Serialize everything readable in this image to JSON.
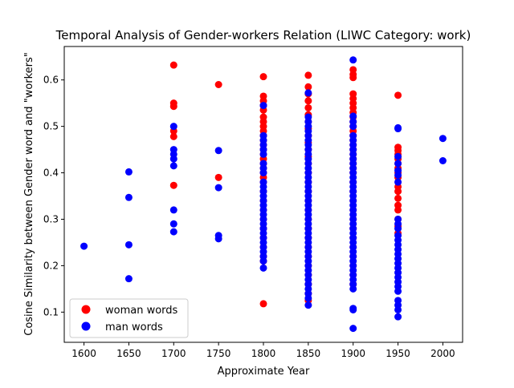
{
  "chart_data": {
    "type": "scatter",
    "title": "Temporal Analysis of Gender-workers Relation (LIWC Category: work)",
    "xlabel": "Approximate Year",
    "ylabel": "Cosine Similarity between Gender word and \"workers\"",
    "xlim": [
      1578,
      2022
    ],
    "ylim": [
      0.035,
      0.672
    ],
    "xticks": [
      "1600",
      "1650",
      "1700",
      "1750",
      "1800",
      "1850",
      "1900",
      "1950",
      "2000"
    ],
    "yticks": [
      "0.1",
      "0.2",
      "0.3",
      "0.4",
      "0.5",
      "0.6"
    ],
    "grid": false,
    "legend_position": "lower-left",
    "series": [
      {
        "name": "woman words",
        "color": "#ff0000",
        "points": [
          [
            1700,
            0.632
          ],
          [
            1700,
            0.55
          ],
          [
            1700,
            0.543
          ],
          [
            1700,
            0.49
          ],
          [
            1700,
            0.478
          ],
          [
            1700,
            0.373
          ],
          [
            1750,
            0.59
          ],
          [
            1750,
            0.39
          ],
          [
            1800,
            0.607
          ],
          [
            1800,
            0.565
          ],
          [
            1800,
            0.555
          ],
          [
            1800,
            0.545
          ],
          [
            1800,
            0.535
          ],
          [
            1800,
            0.52
          ],
          [
            1800,
            0.51
          ],
          [
            1800,
            0.5
          ],
          [
            1800,
            0.49
          ],
          [
            1800,
            0.48
          ],
          [
            1800,
            0.47
          ],
          [
            1800,
            0.46
          ],
          [
            1800,
            0.45
          ],
          [
            1800,
            0.44
          ],
          [
            1800,
            0.43
          ],
          [
            1800,
            0.42
          ],
          [
            1800,
            0.41
          ],
          [
            1800,
            0.4
          ],
          [
            1800,
            0.39
          ],
          [
            1800,
            0.38
          ],
          [
            1800,
            0.36
          ],
          [
            1800,
            0.34
          ],
          [
            1800,
            0.32
          ],
          [
            1800,
            0.3
          ],
          [
            1800,
            0.28
          ],
          [
            1800,
            0.26
          ],
          [
            1800,
            0.24
          ],
          [
            1800,
            0.22
          ],
          [
            1800,
            0.21
          ],
          [
            1800,
            0.118
          ],
          [
            1850,
            0.61
          ],
          [
            1850,
            0.585
          ],
          [
            1850,
            0.57
          ],
          [
            1850,
            0.555
          ],
          [
            1850,
            0.54
          ],
          [
            1850,
            0.525
          ],
          [
            1850,
            0.51
          ],
          [
            1850,
            0.495
          ],
          [
            1850,
            0.48
          ],
          [
            1850,
            0.465
          ],
          [
            1850,
            0.45
          ],
          [
            1850,
            0.435
          ],
          [
            1850,
            0.42
          ],
          [
            1850,
            0.4
          ],
          [
            1850,
            0.38
          ],
          [
            1850,
            0.36
          ],
          [
            1850,
            0.34
          ],
          [
            1850,
            0.32
          ],
          [
            1850,
            0.3
          ],
          [
            1850,
            0.28
          ],
          [
            1850,
            0.26
          ],
          [
            1850,
            0.24
          ],
          [
            1850,
            0.22
          ],
          [
            1850,
            0.2
          ],
          [
            1850,
            0.18
          ],
          [
            1850,
            0.16
          ],
          [
            1850,
            0.14
          ],
          [
            1850,
            0.125
          ],
          [
            1900,
            0.622
          ],
          [
            1900,
            0.612
          ],
          [
            1900,
            0.605
          ],
          [
            1900,
            0.57
          ],
          [
            1900,
            0.56
          ],
          [
            1900,
            0.55
          ],
          [
            1900,
            0.54
          ],
          [
            1900,
            0.53
          ],
          [
            1900,
            0.52
          ],
          [
            1900,
            0.51
          ],
          [
            1900,
            0.5
          ],
          [
            1900,
            0.49
          ],
          [
            1900,
            0.48
          ],
          [
            1900,
            0.47
          ],
          [
            1900,
            0.46
          ],
          [
            1900,
            0.45
          ],
          [
            1900,
            0.44
          ],
          [
            1900,
            0.43
          ],
          [
            1900,
            0.42
          ],
          [
            1900,
            0.41
          ],
          [
            1900,
            0.4
          ],
          [
            1900,
            0.38
          ],
          [
            1900,
            0.36
          ],
          [
            1900,
            0.34
          ],
          [
            1900,
            0.32
          ],
          [
            1900,
            0.3
          ],
          [
            1900,
            0.28
          ],
          [
            1900,
            0.26
          ],
          [
            1900,
            0.24
          ],
          [
            1900,
            0.22
          ],
          [
            1900,
            0.2
          ],
          [
            1900,
            0.18
          ],
          [
            1900,
            0.16
          ],
          [
            1950,
            0.567
          ],
          [
            1950,
            0.455
          ],
          [
            1950,
            0.448
          ],
          [
            1950,
            0.44
          ],
          [
            1950,
            0.43
          ],
          [
            1950,
            0.42
          ],
          [
            1950,
            0.41
          ],
          [
            1950,
            0.4
          ],
          [
            1950,
            0.39
          ],
          [
            1950,
            0.37
          ],
          [
            1950,
            0.36
          ],
          [
            1950,
            0.345
          ],
          [
            1950,
            0.33
          ],
          [
            1950,
            0.32
          ],
          [
            1950,
            0.3
          ],
          [
            1950,
            0.285
          ],
          [
            1950,
            0.27
          ]
        ]
      },
      {
        "name": "man words",
        "color": "#0000ff",
        "points": [
          [
            1600,
            0.242
          ],
          [
            1650,
            0.402
          ],
          [
            1650,
            0.347
          ],
          [
            1650,
            0.245
          ],
          [
            1650,
            0.172
          ],
          [
            1700,
            0.5
          ],
          [
            1700,
            0.45
          ],
          [
            1700,
            0.44
          ],
          [
            1700,
            0.43
          ],
          [
            1700,
            0.415
          ],
          [
            1700,
            0.32
          ],
          [
            1700,
            0.29
          ],
          [
            1700,
            0.273
          ],
          [
            1750,
            0.448
          ],
          [
            1750,
            0.368
          ],
          [
            1750,
            0.265
          ],
          [
            1750,
            0.258
          ],
          [
            1800,
            0.545
          ],
          [
            1800,
            0.48
          ],
          [
            1800,
            0.47
          ],
          [
            1800,
            0.46
          ],
          [
            1800,
            0.45
          ],
          [
            1800,
            0.44
          ],
          [
            1800,
            0.42
          ],
          [
            1800,
            0.41
          ],
          [
            1800,
            0.4
          ],
          [
            1800,
            0.38
          ],
          [
            1800,
            0.37
          ],
          [
            1800,
            0.36
          ],
          [
            1800,
            0.35
          ],
          [
            1800,
            0.34
          ],
          [
            1800,
            0.33
          ],
          [
            1800,
            0.32
          ],
          [
            1800,
            0.31
          ],
          [
            1800,
            0.3
          ],
          [
            1800,
            0.29
          ],
          [
            1800,
            0.28
          ],
          [
            1800,
            0.27
          ],
          [
            1800,
            0.26
          ],
          [
            1800,
            0.25
          ],
          [
            1800,
            0.24
          ],
          [
            1800,
            0.23
          ],
          [
            1800,
            0.22
          ],
          [
            1800,
            0.21
          ],
          [
            1800,
            0.195
          ],
          [
            1850,
            0.572
          ],
          [
            1850,
            0.52
          ],
          [
            1850,
            0.51
          ],
          [
            1850,
            0.5
          ],
          [
            1850,
            0.49
          ],
          [
            1850,
            0.48
          ],
          [
            1850,
            0.47
          ],
          [
            1850,
            0.46
          ],
          [
            1850,
            0.45
          ],
          [
            1850,
            0.44
          ],
          [
            1850,
            0.43
          ],
          [
            1850,
            0.42
          ],
          [
            1850,
            0.41
          ],
          [
            1850,
            0.4
          ],
          [
            1850,
            0.39
          ],
          [
            1850,
            0.38
          ],
          [
            1850,
            0.37
          ],
          [
            1850,
            0.36
          ],
          [
            1850,
            0.35
          ],
          [
            1850,
            0.34
          ],
          [
            1850,
            0.33
          ],
          [
            1850,
            0.32
          ],
          [
            1850,
            0.31
          ],
          [
            1850,
            0.3
          ],
          [
            1850,
            0.29
          ],
          [
            1850,
            0.28
          ],
          [
            1850,
            0.27
          ],
          [
            1850,
            0.26
          ],
          [
            1850,
            0.25
          ],
          [
            1850,
            0.24
          ],
          [
            1850,
            0.23
          ],
          [
            1850,
            0.22
          ],
          [
            1850,
            0.21
          ],
          [
            1850,
            0.2
          ],
          [
            1850,
            0.19
          ],
          [
            1850,
            0.18
          ],
          [
            1850,
            0.17
          ],
          [
            1850,
            0.16
          ],
          [
            1850,
            0.15
          ],
          [
            1850,
            0.14
          ],
          [
            1850,
            0.13
          ],
          [
            1850,
            0.115
          ],
          [
            1900,
            0.643
          ],
          [
            1900,
            0.522
          ],
          [
            1900,
            0.51
          ],
          [
            1900,
            0.5
          ],
          [
            1900,
            0.48
          ],
          [
            1900,
            0.47
          ],
          [
            1900,
            0.46
          ],
          [
            1900,
            0.45
          ],
          [
            1900,
            0.44
          ],
          [
            1900,
            0.43
          ],
          [
            1900,
            0.42
          ],
          [
            1900,
            0.41
          ],
          [
            1900,
            0.4
          ],
          [
            1900,
            0.39
          ],
          [
            1900,
            0.38
          ],
          [
            1900,
            0.37
          ],
          [
            1900,
            0.36
          ],
          [
            1900,
            0.35
          ],
          [
            1900,
            0.34
          ],
          [
            1900,
            0.33
          ],
          [
            1900,
            0.32
          ],
          [
            1900,
            0.31
          ],
          [
            1900,
            0.3
          ],
          [
            1900,
            0.29
          ],
          [
            1900,
            0.28
          ],
          [
            1900,
            0.27
          ],
          [
            1900,
            0.26
          ],
          [
            1900,
            0.25
          ],
          [
            1900,
            0.24
          ],
          [
            1900,
            0.23
          ],
          [
            1900,
            0.22
          ],
          [
            1900,
            0.21
          ],
          [
            1900,
            0.2
          ],
          [
            1900,
            0.19
          ],
          [
            1900,
            0.18
          ],
          [
            1900,
            0.17
          ],
          [
            1900,
            0.16
          ],
          [
            1900,
            0.15
          ],
          [
            1900,
            0.108
          ],
          [
            1900,
            0.105
          ],
          [
            1900,
            0.065
          ],
          [
            1950,
            0.497
          ],
          [
            1950,
            0.495
          ],
          [
            1950,
            0.435
          ],
          [
            1950,
            0.42
          ],
          [
            1950,
            0.405
          ],
          [
            1950,
            0.395
          ],
          [
            1950,
            0.38
          ],
          [
            1950,
            0.3
          ],
          [
            1950,
            0.29
          ],
          [
            1950,
            0.28
          ],
          [
            1950,
            0.265
          ],
          [
            1950,
            0.255
          ],
          [
            1950,
            0.245
          ],
          [
            1950,
            0.235
          ],
          [
            1950,
            0.225
          ],
          [
            1950,
            0.215
          ],
          [
            1950,
            0.205
          ],
          [
            1950,
            0.195
          ],
          [
            1950,
            0.185
          ],
          [
            1950,
            0.175
          ],
          [
            1950,
            0.165
          ],
          [
            1950,
            0.155
          ],
          [
            1950,
            0.145
          ],
          [
            1950,
            0.125
          ],
          [
            1950,
            0.115
          ],
          [
            1950,
            0.105
          ],
          [
            1950,
            0.09
          ],
          [
            2000,
            0.474
          ],
          [
            2000,
            0.426
          ]
        ]
      }
    ]
  }
}
